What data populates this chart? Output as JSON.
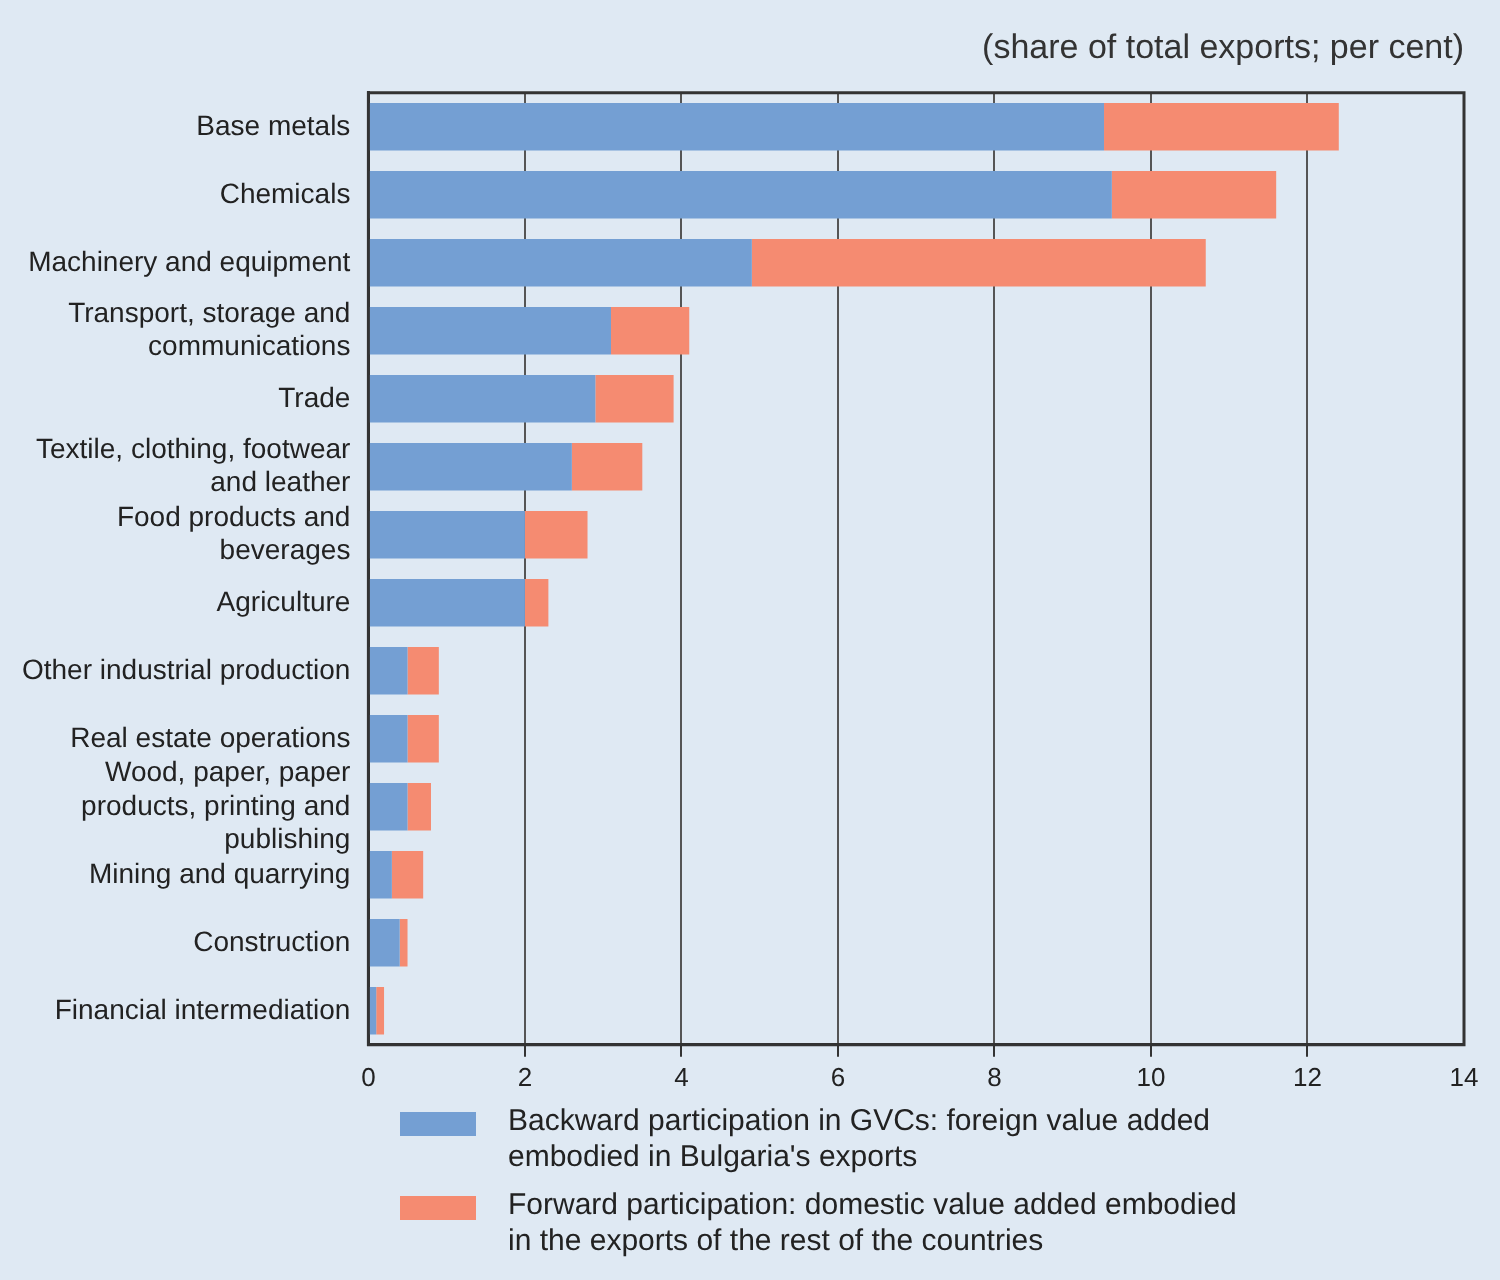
{
  "chart_data": {
    "type": "bar",
    "orientation": "horizontal",
    "stacked": true,
    "subtitle": "(share of total exports; per cent)",
    "categories": [
      "Base metals",
      "Chemicals",
      "Machinery and equipment",
      "Transport, storage and communications",
      "Trade",
      "Textile, clothing, footwear and leather",
      "Food products and beverages",
      "Agriculture",
      "Other industrial production",
      "Real estate operations",
      "Wood, paper, paper products, printing and publishing",
      "Mining and quarrying",
      "Construction",
      "Financial intermediation"
    ],
    "series": [
      {
        "name": "Backward participation in GVCs: foreign value added embodied in Bulgaria's exports",
        "color": "#749fd3",
        "values": [
          9.4,
          9.5,
          4.9,
          3.1,
          2.9,
          2.6,
          2.0,
          2.0,
          0.5,
          0.5,
          0.5,
          0.3,
          0.4,
          0.1
        ]
      },
      {
        "name": "Forward participation: domestic value added embodied in the exports of the rest of the countries",
        "color": "#f58b71",
        "values": [
          3.0,
          2.1,
          5.8,
          1.0,
          1.0,
          0.9,
          0.8,
          0.3,
          0.4,
          0.4,
          0.3,
          0.4,
          0.1,
          0.1
        ]
      }
    ],
    "xlim": [
      0,
      14
    ],
    "xticks": [
      0,
      2,
      4,
      6,
      8,
      10,
      12,
      14
    ],
    "grid": "x",
    "legend": "bottom"
  }
}
